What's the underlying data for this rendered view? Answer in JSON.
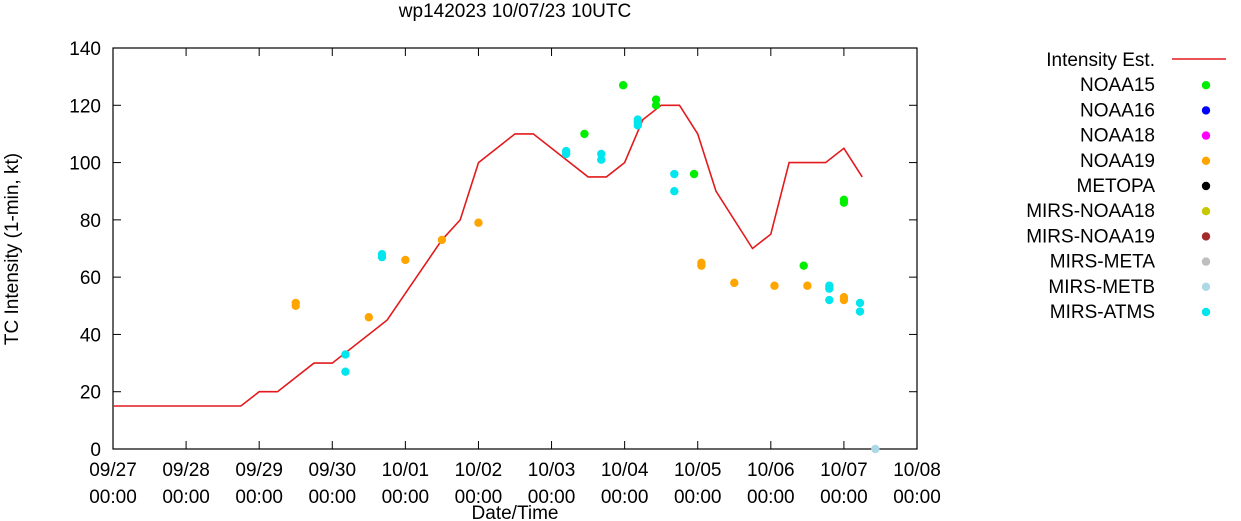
{
  "chart_data": {
    "type": "scatter",
    "title": "wp142023 10/07/23 10UTC",
    "xlabel": "Date/Time",
    "ylabel": "TC Intensity (1-min, kt)",
    "xlim": [
      0,
      11
    ],
    "ylim": [
      0,
      140
    ],
    "y_ticks": [
      0,
      20,
      40,
      60,
      80,
      100,
      120,
      140
    ],
    "x_ticks": [
      {
        "x": 0,
        "date": "09/27",
        "time": "00:00"
      },
      {
        "x": 1,
        "date": "09/28",
        "time": "00:00"
      },
      {
        "x": 2,
        "date": "09/29",
        "time": "00:00"
      },
      {
        "x": 3,
        "date": "09/30",
        "time": "00:00"
      },
      {
        "x": 4,
        "date": "10/01",
        "time": "00:00"
      },
      {
        "x": 5,
        "date": "10/02",
        "time": "00:00"
      },
      {
        "x": 6,
        "date": "10/03",
        "time": "00:00"
      },
      {
        "x": 7,
        "date": "10/04",
        "time": "00:00"
      },
      {
        "x": 8,
        "date": "10/05",
        "time": "00:00"
      },
      {
        "x": 9,
        "date": "10/06",
        "time": "00:00"
      },
      {
        "x": 10,
        "date": "10/07",
        "time": "00:00"
      },
      {
        "x": 11,
        "date": "10/08",
        "time": "00:00"
      }
    ],
    "x_unit": "days since 09/27 00:00",
    "series": [
      {
        "name": "Intensity Est.",
        "kind": "line",
        "color": "#e31a1c",
        "points": [
          [
            0,
            15
          ],
          [
            1.75,
            15
          ],
          [
            2,
            20
          ],
          [
            2.25,
            20
          ],
          [
            2.75,
            30
          ],
          [
            3,
            30
          ],
          [
            3.75,
            45
          ],
          [
            4.5,
            73
          ],
          [
            4.75,
            80
          ],
          [
            5,
            100
          ],
          [
            5.5,
            110
          ],
          [
            5.75,
            110
          ],
          [
            6.5,
            95
          ],
          [
            6.75,
            95
          ],
          [
            7,
            100
          ],
          [
            7.25,
            115
          ],
          [
            7.5,
            120
          ],
          [
            7.75,
            120
          ],
          [
            8,
            110
          ],
          [
            8.25,
            90
          ],
          [
            8.75,
            70
          ],
          [
            9,
            75
          ],
          [
            9.25,
            100
          ],
          [
            9.75,
            100
          ],
          [
            10,
            105
          ],
          [
            10.25,
            95
          ]
        ]
      },
      {
        "name": "NOAA15",
        "kind": "points",
        "color": "#00ee00",
        "points": [
          [
            6.45,
            110
          ],
          [
            6.98,
            127
          ],
          [
            7.43,
            122
          ],
          [
            7.43,
            120
          ],
          [
            7.95,
            96
          ],
          [
            9.45,
            64
          ],
          [
            10,
            87
          ],
          [
            10,
            86
          ]
        ]
      },
      {
        "name": "NOAA16",
        "kind": "points",
        "color": "#0000ff",
        "points": []
      },
      {
        "name": "NOAA18",
        "kind": "points",
        "color": "#ff00ff",
        "points": []
      },
      {
        "name": "NOAA19",
        "kind": "points",
        "color": "#ffa500",
        "points": [
          [
            2.5,
            51
          ],
          [
            2.5,
            50
          ],
          [
            3.5,
            46
          ],
          [
            4,
            66
          ],
          [
            4.5,
            73
          ],
          [
            5,
            79
          ],
          [
            8.05,
            65
          ],
          [
            8.05,
            64
          ],
          [
            8.5,
            58
          ],
          [
            9.05,
            57
          ],
          [
            9.5,
            57
          ],
          [
            10,
            53
          ],
          [
            10,
            52
          ]
        ]
      },
      {
        "name": "METOPA",
        "kind": "points",
        "color": "#000000",
        "points": []
      },
      {
        "name": "MIRS-NOAA18",
        "kind": "points",
        "color": "#c8c800",
        "points": []
      },
      {
        "name": "MIRS-NOAA19",
        "kind": "points",
        "color": "#a52a2a",
        "points": []
      },
      {
        "name": "MIRS-META",
        "kind": "points",
        "color": "#bebebe",
        "points": []
      },
      {
        "name": "MIRS-METB",
        "kind": "points",
        "color": "#add8e6",
        "points": [
          [
            10.43,
            0
          ]
        ]
      },
      {
        "name": "MIRS-ATMS",
        "kind": "points",
        "color": "#00e5ee",
        "points": [
          [
            3.18,
            33
          ],
          [
            3.18,
            27
          ],
          [
            3.68,
            68
          ],
          [
            3.68,
            67
          ],
          [
            6.2,
            104
          ],
          [
            6.2,
            103
          ],
          [
            6.68,
            103
          ],
          [
            6.68,
            101
          ],
          [
            7.18,
            115
          ],
          [
            7.18,
            114
          ],
          [
            7.18,
            113
          ],
          [
            7.68,
            96
          ],
          [
            7.68,
            90
          ],
          [
            9.8,
            57
          ],
          [
            9.8,
            56
          ],
          [
            9.8,
            52
          ],
          [
            10.22,
            51
          ],
          [
            10.22,
            48
          ]
        ]
      }
    ]
  }
}
